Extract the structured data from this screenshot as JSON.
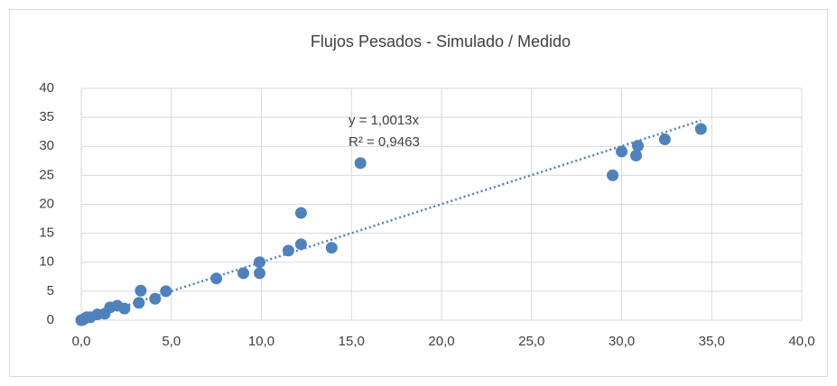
{
  "chart_data": {
    "type": "scatter",
    "title": "Flujos Pesados  - Simulado / Medido",
    "series": [
      {
        "color": "#4f81bd",
        "x": [
          0.0,
          0.1,
          0.2,
          0.3,
          0.5,
          0.9,
          1.3,
          1.6,
          2.0,
          2.4,
          3.2,
          3.3,
          4.1,
          4.7,
          7.5,
          9.0,
          9.9,
          9.9,
          11.5,
          12.2,
          12.2,
          13.9,
          15.5,
          29.5,
          30.0,
          30.9,
          30.8,
          32.4,
          34.4
        ],
        "values": [
          0.0,
          0.1,
          0.3,
          0.5,
          0.5,
          1.0,
          1.1,
          2.2,
          2.5,
          2.0,
          3.0,
          5.1,
          3.7,
          5.0,
          7.2,
          8.1,
          8.1,
          10.0,
          12.0,
          13.1,
          18.5,
          12.5,
          27.1,
          25.0,
          29.1,
          30.1,
          28.4,
          31.2,
          33.0
        ]
      }
    ],
    "trendline": {
      "slope": 1.0013,
      "equation": "y = 1,0013x",
      "r2": "R² = 0,9463",
      "color": "#4f81bd"
    },
    "xlim": [
      0,
      40
    ],
    "xticks": [
      {
        "value": 0,
        "label": "0,0"
      },
      {
        "value": 5,
        "label": "5,0"
      },
      {
        "value": 10,
        "label": "10,0"
      },
      {
        "value": 15,
        "label": "15,0"
      },
      {
        "value": 20,
        "label": "20,0"
      },
      {
        "value": 25,
        "label": "25,0"
      },
      {
        "value": 30,
        "label": "30,0"
      },
      {
        "value": 35,
        "label": "35,0"
      },
      {
        "value": 40,
        "label": "40,0"
      }
    ],
    "ylim": [
      0,
      40
    ],
    "yticks": [
      0,
      5,
      10,
      15,
      20,
      25,
      30,
      35,
      40
    ],
    "grid": true
  }
}
